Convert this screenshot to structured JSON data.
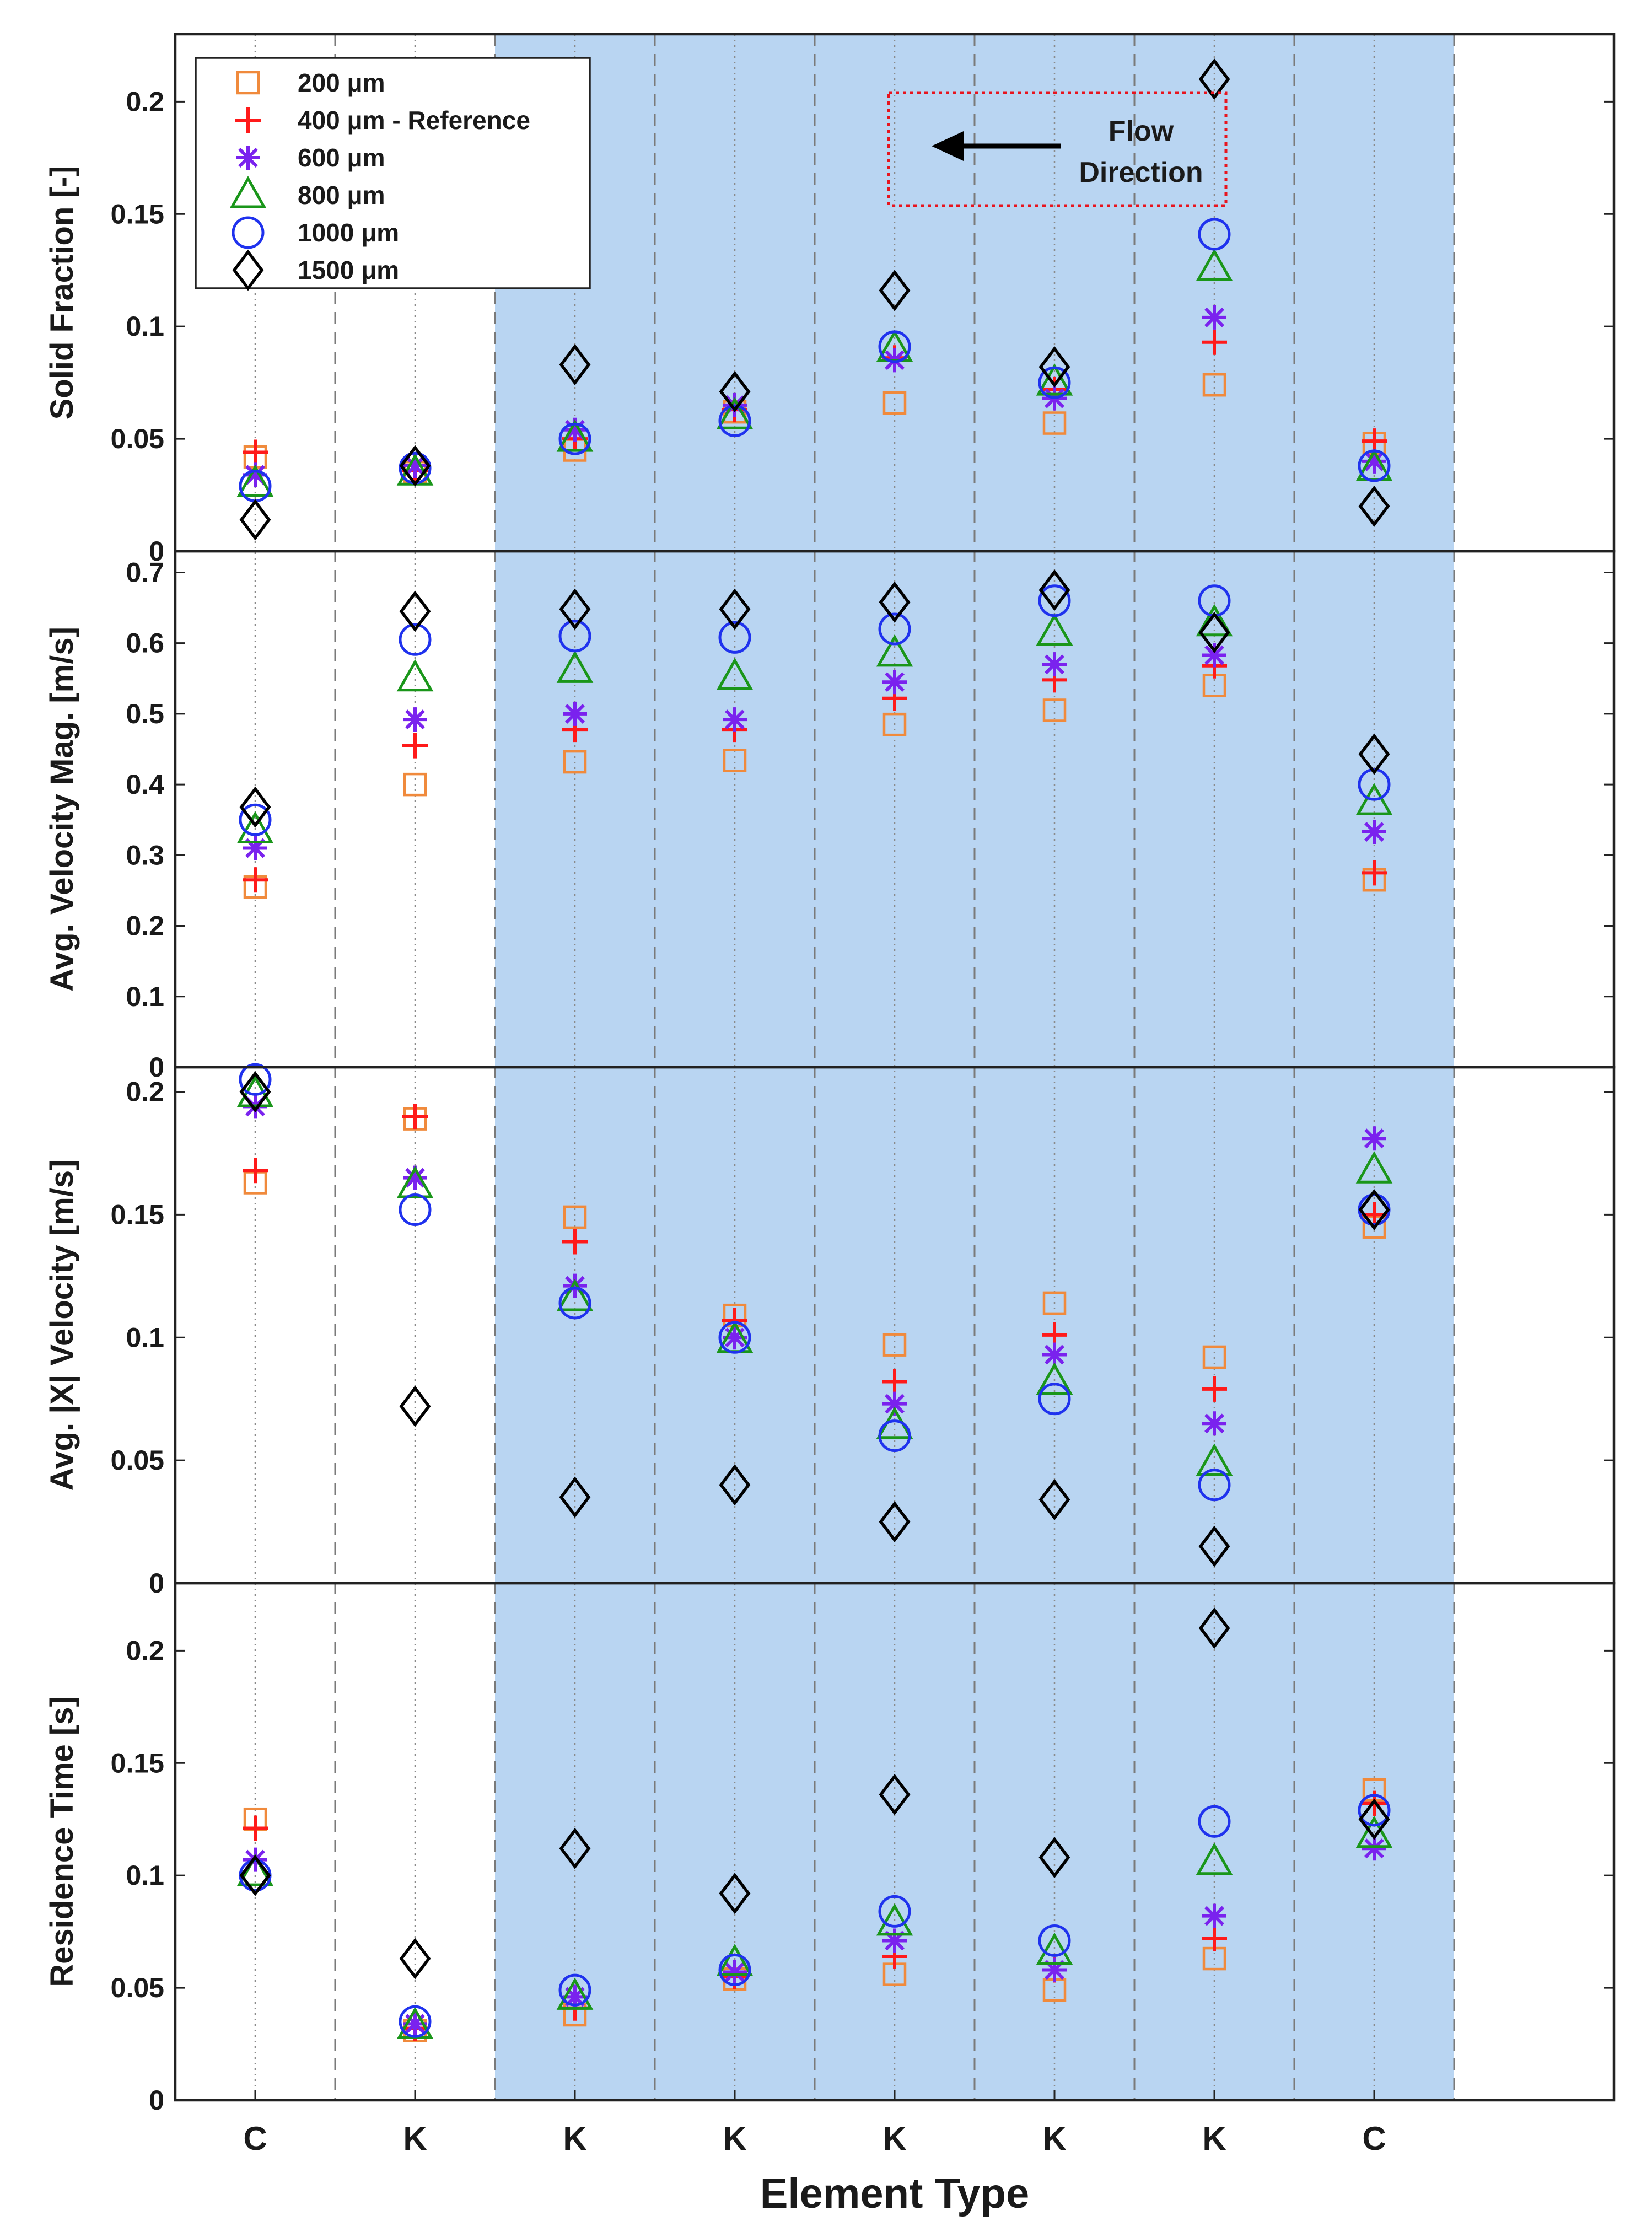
{
  "chart_data": {
    "type": "scatter",
    "xlabel": "Element Type",
    "categories": [
      "C",
      "K",
      "K",
      "K",
      "K",
      "K",
      "K",
      "C"
    ],
    "x": [
      1,
      2,
      3,
      4,
      5,
      6,
      7,
      8
    ],
    "xlim": [
      0.5,
      9.5
    ],
    "highlight_region": [
      2.5,
      8.5
    ],
    "grid": "vertical-dashed-boundaries",
    "legend_position": "top-left",
    "legend": [
      {
        "name": "200 μm",
        "marker": "square",
        "color": "#f08a3c"
      },
      {
        "name": "400 μm - Reference",
        "marker": "plus",
        "color": "#ff1a1a"
      },
      {
        "name": "600 μm",
        "marker": "asterisk",
        "color": "#7a22ee"
      },
      {
        "name": "800 μm",
        "marker": "triangle",
        "color": "#1a961a"
      },
      {
        "name": "1000 μm",
        "marker": "circle",
        "color": "#1f32ee"
      },
      {
        "name": "1500 μm",
        "marker": "diamond",
        "color": "#000000"
      }
    ],
    "annotation": {
      "line1": "Flow",
      "line2": "Direction",
      "arrow": "left"
    },
    "panels": [
      {
        "ylabel": "Solid Fraction [-]",
        "ylim": [
          0,
          0.23
        ],
        "yticks": [
          0,
          0.05,
          0.1,
          0.15,
          0.2
        ],
        "ytick_labels": [
          "0",
          "0.05",
          "0.1",
          "0.15",
          "0.2"
        ],
        "series": [
          {
            "name": "200 μm",
            "values": [
              0.042,
              0.035,
              0.045,
              0.062,
              0.066,
              0.057,
              0.074,
              0.048
            ]
          },
          {
            "name": "400 μm - Reference",
            "values": [
              0.044,
              0.036,
              0.05,
              0.063,
              0.086,
              0.072,
              0.093,
              0.049
            ]
          },
          {
            "name": "600 μm",
            "values": [
              0.034,
              0.038,
              0.054,
              0.065,
              0.085,
              0.068,
              0.104,
              0.04
            ]
          },
          {
            "name": "800 μm",
            "values": [
              0.03,
              0.035,
              0.05,
              0.06,
              0.09,
              0.075,
              0.126,
              0.037
            ]
          },
          {
            "name": "1000 μm",
            "values": [
              0.029,
              0.037,
              0.05,
              0.058,
              0.091,
              0.075,
              0.141,
              0.038
            ]
          },
          {
            "name": "1500 μm",
            "values": [
              0.014,
              0.038,
              0.083,
              0.071,
              0.116,
              0.082,
              0.21,
              0.02
            ]
          }
        ]
      },
      {
        "ylabel": "Avg. Velocity Mag. [m/s]",
        "ylim": [
          0,
          0.73
        ],
        "yticks": [
          0,
          0.1,
          0.2,
          0.3,
          0.4,
          0.5,
          0.6,
          0.7
        ],
        "ytick_labels": [
          "0",
          "0.1",
          "0.2",
          "0.3",
          "0.4",
          "0.5",
          "0.6",
          "0.7"
        ],
        "series": [
          {
            "name": "200 μm",
            "values": [
              0.255,
              0.4,
              0.432,
              0.434,
              0.485,
              0.505,
              0.54,
              0.265
            ]
          },
          {
            "name": "400 μm - Reference",
            "values": [
              0.265,
              0.455,
              0.478,
              0.478,
              0.522,
              0.548,
              0.568,
              0.275
            ]
          },
          {
            "name": "600 μm",
            "values": [
              0.31,
              0.492,
              0.5,
              0.492,
              0.545,
              0.57,
              0.583,
              0.333
            ]
          },
          {
            "name": "800 μm",
            "values": [
              0.335,
              0.55,
              0.562,
              0.552,
              0.585,
              0.615,
              0.628,
              0.375
            ]
          },
          {
            "name": "1000 μm",
            "values": [
              0.35,
              0.605,
              0.61,
              0.608,
              0.62,
              0.66,
              0.66,
              0.4
            ]
          },
          {
            "name": "1500 μm",
            "values": [
              0.368,
              0.645,
              0.648,
              0.648,
              0.658,
              0.675,
              0.615,
              0.443
            ]
          }
        ]
      },
      {
        "ylabel": "Avg. |X| Velocity [m/s]",
        "ylim": [
          0,
          0.21
        ],
        "yticks": [
          0,
          0.05,
          0.1,
          0.15,
          0.2
        ],
        "ytick_labels": [
          "0",
          "0.05",
          "0.1",
          "0.15",
          "0.2"
        ],
        "series": [
          {
            "name": "200 μm",
            "values": [
              0.163,
              0.189,
              0.149,
              0.109,
              0.097,
              0.114,
              0.092,
              0.145
            ]
          },
          {
            "name": "400 μm - Reference",
            "values": [
              0.168,
              0.19,
              0.139,
              0.107,
              0.082,
              0.101,
              0.079,
              0.15
            ]
          },
          {
            "name": "600 μm",
            "values": [
              0.194,
              0.165,
              0.121,
              0.1,
              0.073,
              0.093,
              0.065,
              0.181
            ]
          },
          {
            "name": "800 μm",
            "values": [
              0.199,
              0.162,
              0.116,
              0.099,
              0.064,
              0.082,
              0.049,
              0.168
            ]
          },
          {
            "name": "1000 μm",
            "values": [
              0.205,
              0.152,
              0.114,
              0.1,
              0.06,
              0.075,
              0.04,
              0.152
            ]
          },
          {
            "name": "1500 μm",
            "values": [
              0.2,
              0.072,
              0.035,
              0.04,
              0.025,
              0.034,
              0.015,
              0.152
            ]
          }
        ]
      },
      {
        "ylabel": "Residence Time [s]",
        "ylim": [
          0,
          0.23
        ],
        "yticks": [
          0,
          0.05,
          0.1,
          0.15,
          0.2
        ],
        "ytick_labels": [
          "0",
          "0.05",
          "0.1",
          "0.15",
          "0.2"
        ],
        "series": [
          {
            "name": "200 μm",
            "values": [
              0.125,
              0.031,
              0.038,
              0.054,
              0.056,
              0.049,
              0.063,
              0.138
            ]
          },
          {
            "name": "400 μm - Reference",
            "values": [
              0.121,
              0.032,
              0.041,
              0.055,
              0.064,
              0.058,
              0.072,
              0.132
            ]
          },
          {
            "name": "600 μm",
            "values": [
              0.107,
              0.034,
              0.046,
              0.057,
              0.071,
              0.058,
              0.082,
              0.112
            ]
          },
          {
            "name": "800 μm",
            "values": [
              0.101,
              0.033,
              0.046,
              0.061,
              0.079,
              0.066,
              0.106,
              0.118
            ]
          },
          {
            "name": "1000 μm",
            "values": [
              0.1,
              0.035,
              0.049,
              0.058,
              0.084,
              0.071,
              0.124,
              0.129
            ]
          },
          {
            "name": "1500 μm",
            "values": [
              0.1,
              0.063,
              0.112,
              0.092,
              0.136,
              0.108,
              0.21,
              0.125
            ]
          }
        ]
      }
    ]
  }
}
